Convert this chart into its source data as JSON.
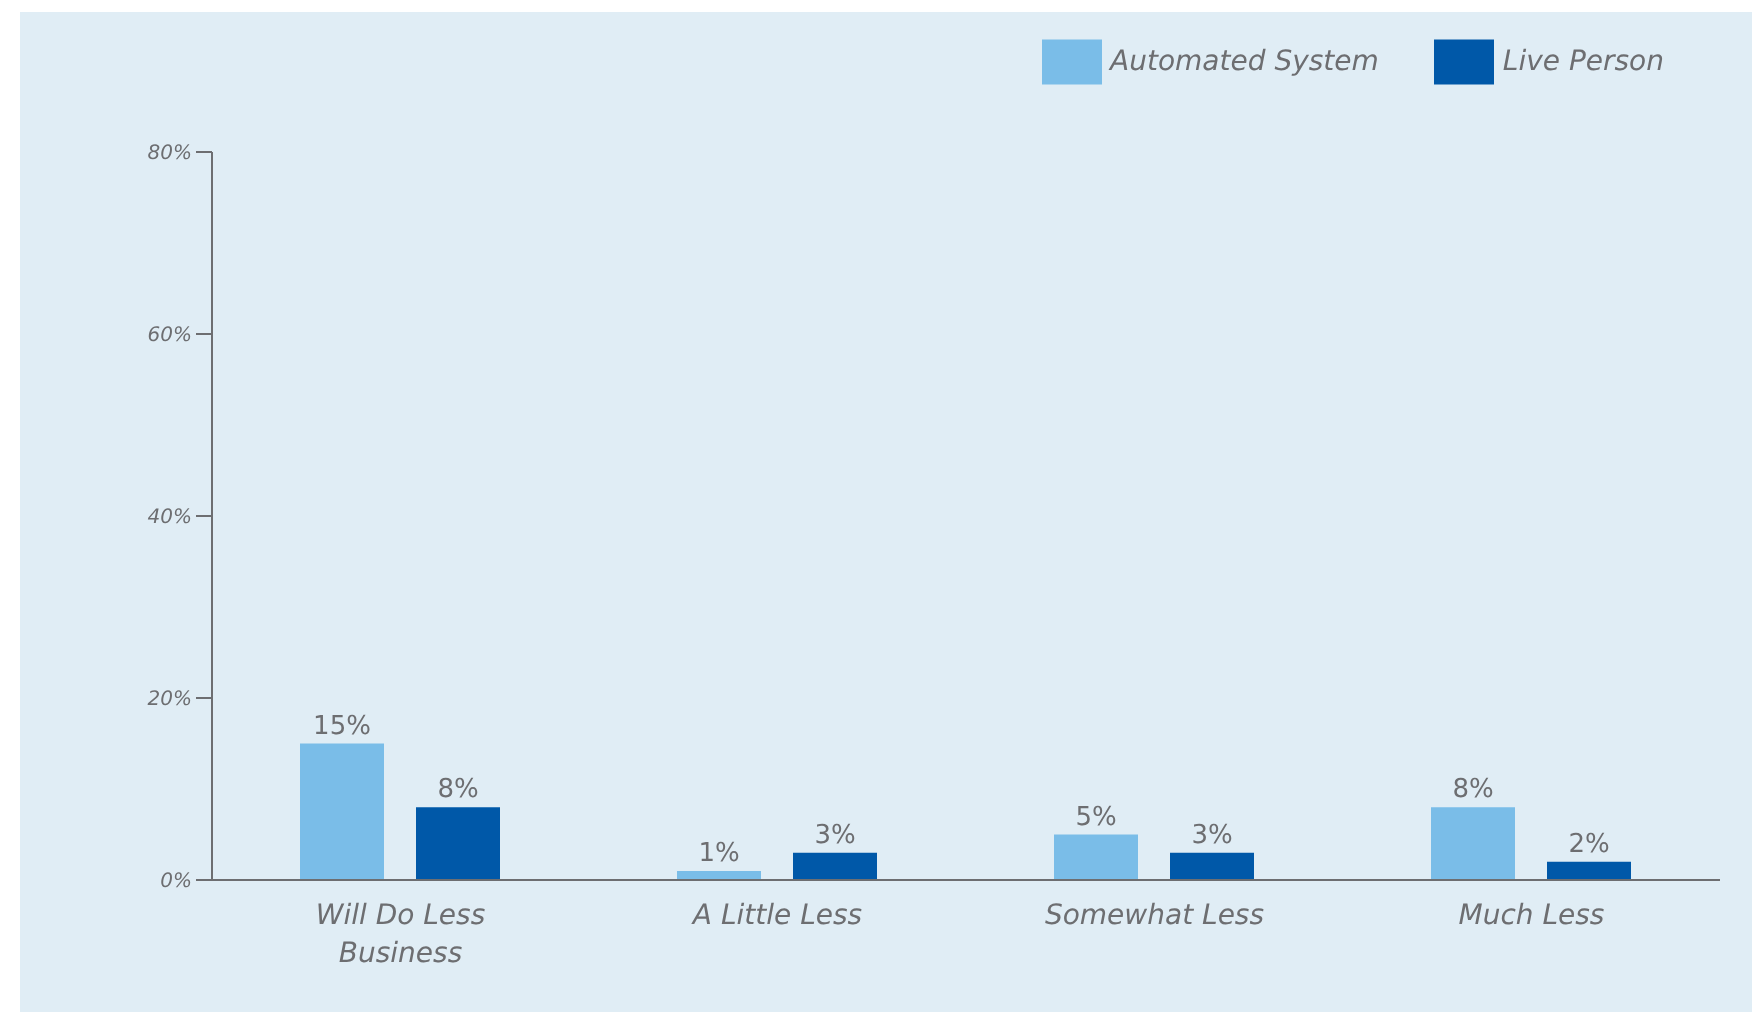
{
  "chart_data": {
    "type": "bar",
    "categories": [
      "Will Do Less Business",
      "A Little Less",
      "Somewhat Less",
      "Much Less"
    ],
    "series": [
      {
        "name": "Automated System",
        "color": "#7abde8",
        "values": [
          15,
          1,
          5,
          8
        ],
        "value_labels": [
          "15%",
          "1%",
          "5%",
          "8%"
        ]
      },
      {
        "name": "Live Person",
        "color": "#0058a8",
        "values": [
          8,
          3,
          3,
          2
        ],
        "value_labels": [
          "8%",
          "3%",
          "3%",
          "2%"
        ]
      }
    ],
    "ylim": [
      0,
      80
    ],
    "yticks": [
      {
        "value": 0,
        "label": "0%"
      },
      {
        "value": 20,
        "label": "20%"
      },
      {
        "value": 40,
        "label": "40%"
      },
      {
        "value": 60,
        "label": "60%"
      },
      {
        "value": 80,
        "label": "80%"
      }
    ],
    "grid": false,
    "legend": "top right"
  }
}
